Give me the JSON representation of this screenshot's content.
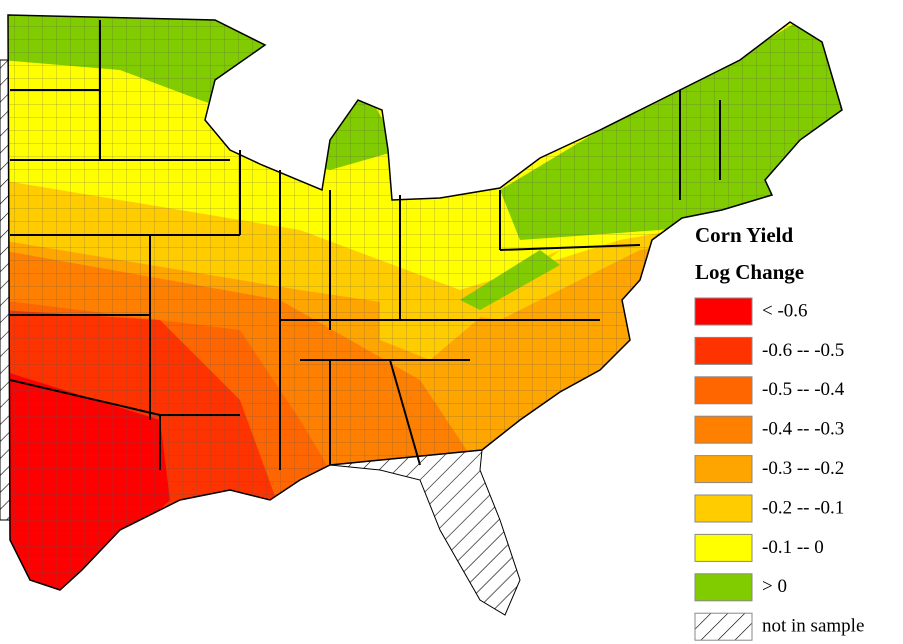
{
  "legend": {
    "title": [
      "Corn Yield",
      "Log Change"
    ],
    "items": [
      {
        "label": "< -0.6",
        "color": "#ff0000"
      },
      {
        "label": "-0.6 -- -0.5",
        "color": "#ff3300"
      },
      {
        "label": "-0.5 -- -0.4",
        "color": "#ff6600"
      },
      {
        "label": "-0.4 -- -0.3",
        "color": "#ff8000"
      },
      {
        "label": "-0.3 -- -0.2",
        "color": "#ffa500"
      },
      {
        "label": "-0.2 -- -0.1",
        "color": "#ffcc00"
      },
      {
        "label": "-0.1 --  0",
        "color": "#ffff00"
      },
      {
        "label": "> 0",
        "color": "#80cc00"
      }
    ],
    "missing": "not in sample"
  }
}
